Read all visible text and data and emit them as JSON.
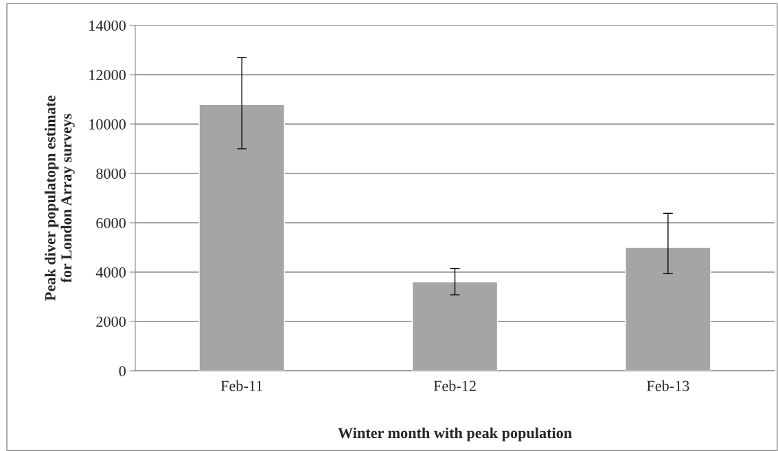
{
  "chart_data": {
    "type": "bar",
    "categories": [
      "Feb-11",
      "Feb-12",
      "Feb-13"
    ],
    "values": [
      10800,
      3600,
      5000
    ],
    "errors": [
      [
        9000,
        12700
      ],
      [
        3080,
        4150
      ],
      [
        3940,
        6380
      ]
    ],
    "color": "#a5a5a5",
    "ylim": [
      0,
      14000
    ],
    "yticks": [
      0,
      2000,
      4000,
      6000,
      8000,
      10000,
      12000,
      14000
    ],
    "grid": "y",
    "xlabel": "Winter month with peak population",
    "ylabel": "Peak diver populatopn estimate\nfor London Array surveys"
  }
}
